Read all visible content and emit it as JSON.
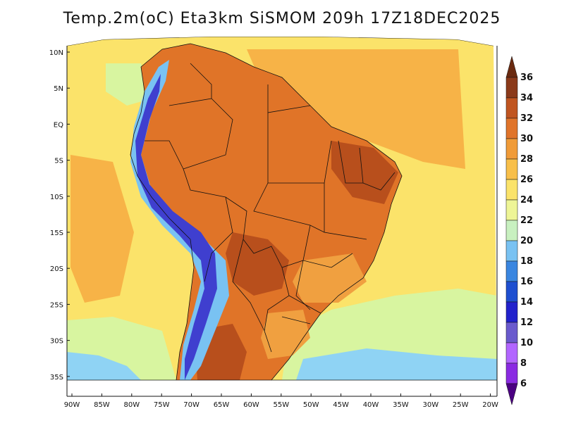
{
  "title": "Temp.2m(oC) Eta3km SiSMOM 209h 17Z18DEC2025",
  "lat_labels": [
    "10N",
    "5N",
    "EQ",
    "5S",
    "10S",
    "15S",
    "20S",
    "25S",
    "30S",
    "35S"
  ],
  "lon_labels": [
    "90W",
    "85W",
    "80W",
    "75W",
    "70W",
    "65W",
    "60W",
    "55W",
    "50W",
    "45W",
    "40W",
    "35W",
    "30W",
    "25W",
    "20W"
  ],
  "colorbar": {
    "labels": [
      "6",
      "8",
      "10",
      "12",
      "14",
      "16",
      "18",
      "20",
      "22",
      "24",
      "26",
      "28",
      "30",
      "32",
      "34",
      "36"
    ],
    "colors": [
      "#4b0082",
      "#8a2be2",
      "#b266ff",
      "#6a5acd",
      "#2222cc",
      "#1e4fd0",
      "#3a86e0",
      "#79c2f2",
      "#c8f0c0",
      "#eef596",
      "#fbe36a",
      "#f8bf49",
      "#f09b38",
      "#e0742a",
      "#c05520",
      "#8b3a1a",
      "#6a2a10"
    ]
  },
  "map_colors": {
    "ocean_warm": "#f7b347",
    "ocean_mid": "#fbe36a",
    "ocean_cool": "#d8f5a0",
    "ocean_cold": "#8fd3f4",
    "land_hot": "#e07428",
    "land_very_hot": "#b84f1c",
    "andes_cold": "#3f3fcf",
    "andes_mid": "#79c2f2",
    "highland": "#f0a040"
  }
}
